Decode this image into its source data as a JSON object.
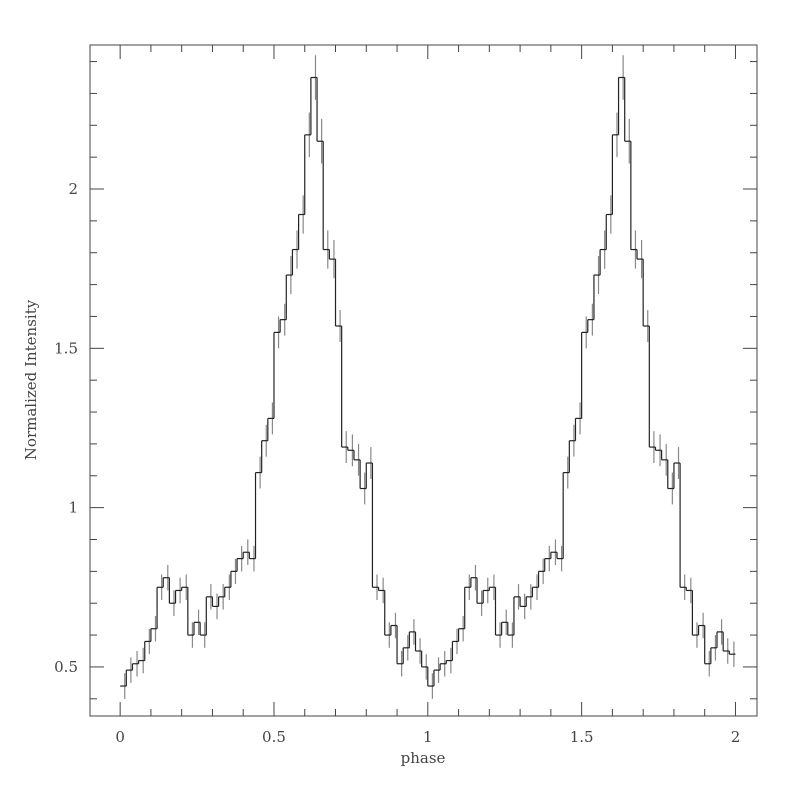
{
  "chart_data": {
    "type": "histogram",
    "xlabel": "phase",
    "ylabel": "Normalized Intensity",
    "bins": [
      0,
      0.02,
      0.04,
      0.06,
      0.08,
      0.1,
      0.12,
      0.14,
      0.16,
      0.18,
      0.2,
      0.22,
      0.24,
      0.26,
      0.28,
      0.3,
      0.32,
      0.34,
      0.36,
      0.38,
      0.4,
      0.42,
      0.44,
      0.46,
      0.48,
      0.5,
      0.52,
      0.54,
      0.56,
      0.58,
      0.6,
      0.62,
      0.64,
      0.66,
      0.68,
      0.7,
      0.72,
      0.74,
      0.76,
      0.78,
      0.8,
      0.82,
      0.84,
      0.86,
      0.88,
      0.9,
      0.92,
      0.94,
      0.96,
      0.98,
      1,
      1.02,
      1.04,
      1.06,
      1.08,
      1.1,
      1.12,
      1.14,
      1.16,
      1.18,
      1.2,
      1.22,
      1.24,
      1.26,
      1.28,
      1.3,
      1.32,
      1.34,
      1.36,
      1.38,
      1.4,
      1.42,
      1.44,
      1.46,
      1.48,
      1.5,
      1.52,
      1.54,
      1.56,
      1.58,
      1.6,
      1.62,
      1.64,
      1.66,
      1.68,
      1.7,
      1.72,
      1.74,
      1.76,
      1.78,
      1.8,
      1.82,
      1.84,
      1.86,
      1.88,
      1.9,
      1.92,
      1.94,
      1.96,
      1.98,
      2
    ],
    "values": [
      0.44,
      0.49,
      0.51,
      0.52,
      0.58,
      0.62,
      0.75,
      0.78,
      0.7,
      0.74,
      0.75,
      0.6,
      0.64,
      0.6,
      0.72,
      0.69,
      0.72,
      0.75,
      0.8,
      0.84,
      0.86,
      0.84,
      1.11,
      1.21,
      1.28,
      1.55,
      1.59,
      1.73,
      1.81,
      1.92,
      2.17,
      2.35,
      2.15,
      1.81,
      1.78,
      1.57,
      1.19,
      1.18,
      1.15,
      1.06,
      1.14,
      0.75,
      0.74,
      0.6,
      0.63,
      0.51,
      0.56,
      0.61,
      0.55,
      0.5,
      0.44,
      0.49,
      0.51,
      0.52,
      0.58,
      0.62,
      0.75,
      0.78,
      0.7,
      0.74,
      0.75,
      0.6,
      0.64,
      0.6,
      0.72,
      0.69,
      0.72,
      0.75,
      0.8,
      0.84,
      0.86,
      0.84,
      1.11,
      1.21,
      1.28,
      1.55,
      1.59,
      1.73,
      1.81,
      1.92,
      2.17,
      2.35,
      2.15,
      1.81,
      1.78,
      1.57,
      1.19,
      1.18,
      1.15,
      1.06,
      1.14,
      0.75,
      0.74,
      0.6,
      0.63,
      0.51,
      0.56,
      0.61,
      0.55,
      0.54
    ],
    "errors": [
      0.04,
      0.04,
      0.04,
      0.04,
      0.04,
      0.04,
      0.04,
      0.04,
      0.04,
      0.04,
      0.04,
      0.04,
      0.04,
      0.04,
      0.04,
      0.04,
      0.04,
      0.04,
      0.04,
      0.04,
      0.04,
      0.04,
      0.05,
      0.05,
      0.05,
      0.05,
      0.05,
      0.06,
      0.06,
      0.06,
      0.07,
      0.07,
      0.07,
      0.06,
      0.06,
      0.05,
      0.05,
      0.05,
      0.05,
      0.05,
      0.05,
      0.04,
      0.04,
      0.04,
      0.04,
      0.04,
      0.04,
      0.04,
      0.04,
      0.04,
      0.04,
      0.04,
      0.04,
      0.04,
      0.04,
      0.04,
      0.04,
      0.04,
      0.04,
      0.04,
      0.04,
      0.04,
      0.04,
      0.04,
      0.04,
      0.04,
      0.04,
      0.04,
      0.04,
      0.04,
      0.04,
      0.04,
      0.05,
      0.05,
      0.05,
      0.05,
      0.05,
      0.06,
      0.06,
      0.06,
      0.07,
      0.07,
      0.07,
      0.06,
      0.06,
      0.05,
      0.05,
      0.05,
      0.05,
      0.05,
      0.05,
      0.04,
      0.04,
      0.04,
      0.04,
      0.04,
      0.04,
      0.04,
      0.04,
      0.04
    ],
    "color": "#222222",
    "error_color": "#888888",
    "xlim": [
      -0.098,
      2.07
    ],
    "ylim": [
      0.346,
      2.452
    ],
    "xticks": [
      0,
      0.5,
      1,
      1.5,
      2
    ],
    "yticks": [
      0.5,
      1,
      1.5,
      2
    ],
    "xminor_ticks": [
      0.1,
      0.2,
      0.3,
      0.4,
      0.6,
      0.7,
      0.8,
      0.9,
      1.1,
      1.2,
      1.3,
      1.4,
      1.6,
      1.7,
      1.8,
      1.9
    ],
    "yminor_ticks": [
      0.4,
      0.6,
      0.7,
      0.8,
      0.9,
      1.1,
      1.2,
      1.3,
      1.4,
      1.6,
      1.7,
      1.8,
      1.9,
      2.1,
      2.2,
      2.3,
      2.4
    ]
  }
}
